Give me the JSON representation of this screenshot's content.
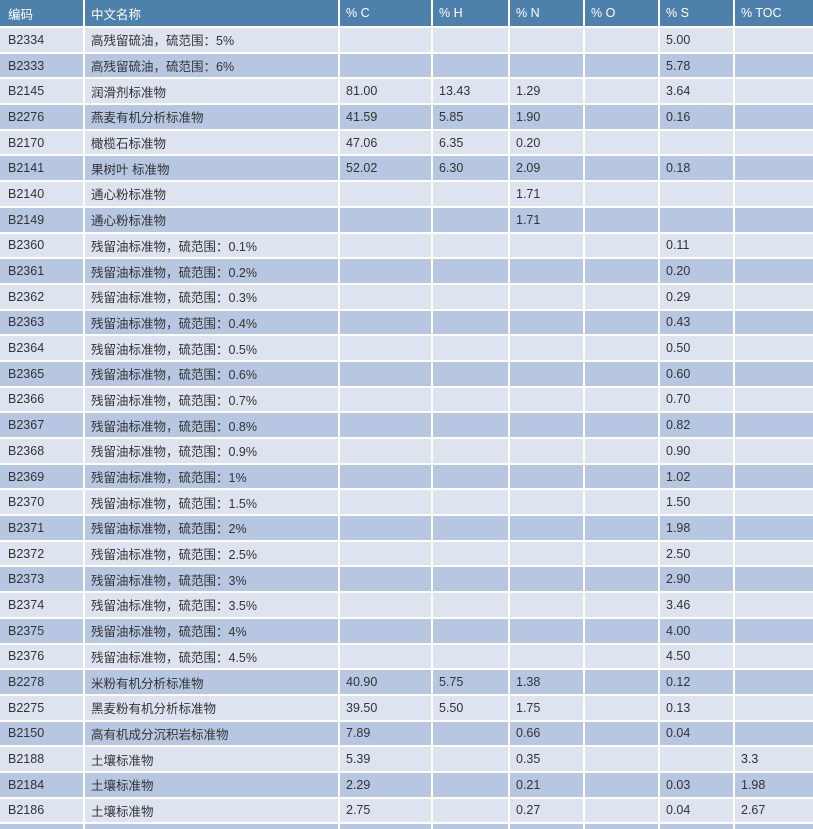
{
  "colors": {
    "header_bg": "#4e80ac",
    "header_text": "#ffffff",
    "row_light": "#dde3ef",
    "row_dark": "#b7c6e1",
    "text": "#333333"
  },
  "table": {
    "columns": [
      {
        "key": "code",
        "label": "编码"
      },
      {
        "key": "name",
        "label": "中文名称"
      },
      {
        "key": "c",
        "label": "% C"
      },
      {
        "key": "h",
        "label": "% H"
      },
      {
        "key": "n",
        "label": "% N"
      },
      {
        "key": "o",
        "label": "% O"
      },
      {
        "key": "s",
        "label": "% S"
      },
      {
        "key": "toc",
        "label": "% TOC"
      }
    ],
    "rows": [
      {
        "code": "B2334",
        "name": "高残留硫油，硫范围：5%",
        "c": "",
        "h": "",
        "n": "",
        "o": "",
        "s": "5.00",
        "toc": ""
      },
      {
        "code": "B2333",
        "name": "高残留硫油，硫范围：6%",
        "c": "",
        "h": "",
        "n": "",
        "o": "",
        "s": "5.78",
        "toc": ""
      },
      {
        "code": "B2145",
        "name": "润滑剂标准物",
        "c": "81.00",
        "h": "13.43",
        "n": "1.29",
        "o": "",
        "s": "3.64",
        "toc": ""
      },
      {
        "code": "B2276",
        "name": "燕麦有机分析标准物",
        "c": "41.59",
        "h": "5.85",
        "n": "1.90",
        "o": "",
        "s": "0.16",
        "toc": ""
      },
      {
        "code": "B2170",
        "name": "橄榄石标准物",
        "c": "47.06",
        "h": "6.35",
        "n": "0.20",
        "o": "",
        "s": "",
        "toc": ""
      },
      {
        "code": "B2141",
        "name": "果树叶 标准物",
        "c": "52.02",
        "h": "6.30",
        "n": "2.09",
        "o": "",
        "s": "0.18",
        "toc": ""
      },
      {
        "code": "B2140",
        "name": "通心粉标准物",
        "c": "",
        "h": "",
        "n": "1.71",
        "o": "",
        "s": "",
        "toc": ""
      },
      {
        "code": "B2149",
        "name": "通心粉标准物",
        "c": "",
        "h": "",
        "n": "1.71",
        "o": "",
        "s": "",
        "toc": ""
      },
      {
        "code": "B2360",
        "name": "残留油标准物，硫范围：0.1%",
        "c": "",
        "h": "",
        "n": "",
        "o": "",
        "s": "0.11",
        "toc": ""
      },
      {
        "code": "B2361",
        "name": "残留油标准物，硫范围：0.2%",
        "c": "",
        "h": "",
        "n": "",
        "o": "",
        "s": "0.20",
        "toc": ""
      },
      {
        "code": "B2362",
        "name": "残留油标准物，硫范围：0.3%",
        "c": "",
        "h": "",
        "n": "",
        "o": "",
        "s": "0.29",
        "toc": ""
      },
      {
        "code": "B2363",
        "name": "残留油标准物，硫范围：0.4%",
        "c": "",
        "h": "",
        "n": "",
        "o": "",
        "s": "0.43",
        "toc": ""
      },
      {
        "code": "B2364",
        "name": "残留油标准物，硫范围：0.5%",
        "c": "",
        "h": "",
        "n": "",
        "o": "",
        "s": "0.50",
        "toc": ""
      },
      {
        "code": "B2365",
        "name": "残留油标准物，硫范围：0.6%",
        "c": "",
        "h": "",
        "n": "",
        "o": "",
        "s": "0.60",
        "toc": ""
      },
      {
        "code": "B2366",
        "name": "残留油标准物，硫范围：0.7%",
        "c": "",
        "h": "",
        "n": "",
        "o": "",
        "s": "0.70",
        "toc": ""
      },
      {
        "code": "B2367",
        "name": "残留油标准物，硫范围：0.8%",
        "c": "",
        "h": "",
        "n": "",
        "o": "",
        "s": "0.82",
        "toc": ""
      },
      {
        "code": "B2368",
        "name": "残留油标准物，硫范围：0.9%",
        "c": "",
        "h": "",
        "n": "",
        "o": "",
        "s": "0.90",
        "toc": ""
      },
      {
        "code": "B2369",
        "name": "残留油标准物，硫范围：1%",
        "c": "",
        "h": "",
        "n": "",
        "o": "",
        "s": "1.02",
        "toc": ""
      },
      {
        "code": "B2370",
        "name": "残留油标准物，硫范围：1.5%",
        "c": "",
        "h": "",
        "n": "",
        "o": "",
        "s": "1.50",
        "toc": ""
      },
      {
        "code": "B2371",
        "name": "残留油标准物，硫范围：2%",
        "c": "",
        "h": "",
        "n": "",
        "o": "",
        "s": "1.98",
        "toc": ""
      },
      {
        "code": "B2372",
        "name": "残留油标准物，硫范围：2.5%",
        "c": "",
        "h": "",
        "n": "",
        "o": "",
        "s": "2.50",
        "toc": ""
      },
      {
        "code": "B2373",
        "name": "残留油标准物，硫范围：3%",
        "c": "",
        "h": "",
        "n": "",
        "o": "",
        "s": "2.90",
        "toc": ""
      },
      {
        "code": "B2374",
        "name": "残留油标准物，硫范围：3.5%",
        "c": "",
        "h": "",
        "n": "",
        "o": "",
        "s": "3.46",
        "toc": ""
      },
      {
        "code": "B2375",
        "name": "残留油标准物，硫范围：4%",
        "c": "",
        "h": "",
        "n": "",
        "o": "",
        "s": "4.00",
        "toc": ""
      },
      {
        "code": "B2376",
        "name": "残留油标准物，硫范围：4.5%",
        "c": "",
        "h": "",
        "n": "",
        "o": "",
        "s": "4.50",
        "toc": ""
      },
      {
        "code": "B2278",
        "name": "米粉有机分析标准物",
        "c": "40.90",
        "h": "5.75",
        "n": "1.38",
        "o": "",
        "s": "0.12",
        "toc": ""
      },
      {
        "code": "B2275",
        "name": "黑麦粉有机分析标准物",
        "c": "39.50",
        "h": "5.50",
        "n": "1.75",
        "o": "",
        "s": "0.13",
        "toc": ""
      },
      {
        "code": "B2150",
        "name": "高有机成分沉积岩标准物",
        "c": "7.89",
        "h": "",
        "n": "0.66",
        "o": "",
        "s": "0.04",
        "toc": ""
      },
      {
        "code": "B2188",
        "name": "土壤标准物",
        "c": "5.39",
        "h": "",
        "n": "0.35",
        "o": "",
        "s": "",
        "toc": "3.3"
      },
      {
        "code": "B2184",
        "name": "土壤标准物",
        "c": "2.29",
        "h": "",
        "n": "0.21",
        "o": "",
        "s": "0.03",
        "toc": "1.98"
      },
      {
        "code": "B2186",
        "name": "土壤标准物",
        "c": "2.75",
        "h": "",
        "n": "0.27",
        "o": "",
        "s": "0.04",
        "toc": "2.67"
      }
    ],
    "partial_bottom_row": true
  }
}
